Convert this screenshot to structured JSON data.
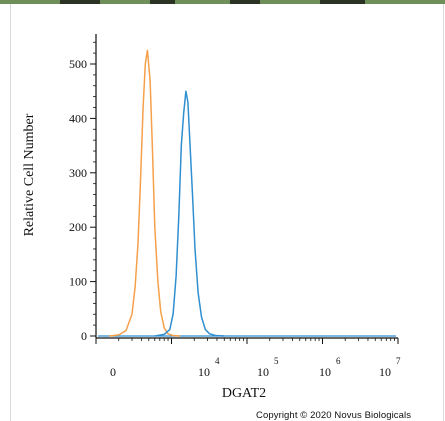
{
  "chart_data": {
    "type": "line",
    "title": "",
    "xlabel": "DGAT2",
    "ylabel": "Relative Cell Number",
    "x_scale": "log",
    "x_ticks": [
      {
        "base": "0",
        "exp": ""
      },
      {
        "base": "10",
        "exp": "4"
      },
      {
        "base": "10",
        "exp": "5"
      },
      {
        "base": "10",
        "exp": "6"
      },
      {
        "base": "10",
        "exp": "7"
      }
    ],
    "y_ticks": [
      "500",
      "400",
      "300",
      "200",
      "100",
      "0"
    ],
    "ylim": [
      0,
      540
    ],
    "series": [
      {
        "color": "#f5a04a",
        "x": [
          1500,
          2000,
          2500,
          3000,
          3300,
          3600,
          3900,
          4200,
          4500,
          4800,
          5200,
          5600,
          6000,
          6600,
          7200,
          8000,
          9000,
          10500,
          13000
        ],
        "y": [
          0,
          2,
          10,
          40,
          90,
          170,
          290,
          420,
          500,
          525,
          470,
          340,
          200,
          100,
          45,
          15,
          4,
          1,
          0
        ]
      },
      {
        "color": "#2f8fd0",
        "x": [
          6000,
          8000,
          9500,
          10500,
          11500,
          12500,
          13500,
          14500,
          15500,
          16500,
          17500,
          19000,
          20500,
          22500,
          25000,
          28000,
          32000,
          38000,
          50000
        ],
        "y": [
          0,
          3,
          12,
          40,
          110,
          220,
          350,
          410,
          450,
          430,
          360,
          260,
          160,
          80,
          35,
          12,
          4,
          1,
          0
        ]
      }
    ]
  },
  "footer": {
    "copyright": "Copyright © 2020 Novus Biologicals"
  }
}
